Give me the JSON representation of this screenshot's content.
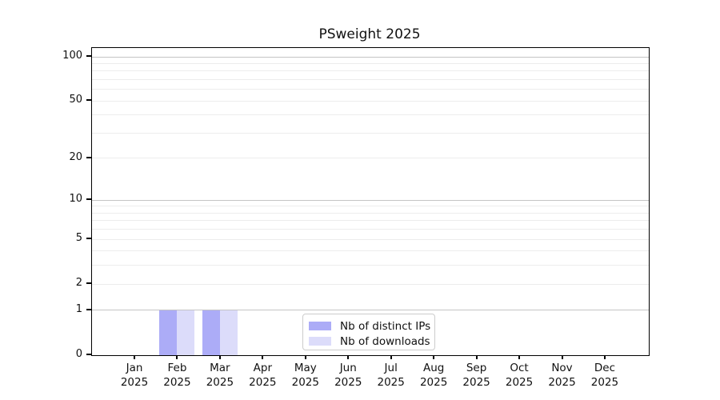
{
  "chart_data": {
    "type": "bar",
    "title": "PSweight 2025",
    "categories": [
      "Jan 2025",
      "Feb 2025",
      "Mar 2025",
      "Apr 2025",
      "May 2025",
      "Jun 2025",
      "Jul 2025",
      "Aug 2025",
      "Sep 2025",
      "Oct 2025",
      "Nov 2025",
      "Dec 2025"
    ],
    "x_tick_months": [
      "Jan",
      "Feb",
      "Mar",
      "Apr",
      "May",
      "Jun",
      "Jul",
      "Aug",
      "Sep",
      "Oct",
      "Nov",
      "Dec"
    ],
    "x_tick_year": "2025",
    "series": [
      {
        "name": "Nb of distinct IPs",
        "color": "#acacf7",
        "values": [
          0,
          1,
          1,
          0,
          0,
          0,
          0,
          0,
          0,
          0,
          0,
          0
        ]
      },
      {
        "name": "Nb of downloads",
        "color": "#dcdcfa",
        "values": [
          0,
          1,
          1,
          0,
          0,
          0,
          0,
          0,
          0,
          0,
          0,
          0
        ]
      }
    ],
    "y_scale": "log10(1+v)",
    "ylim": [
      0,
      115
    ],
    "y_tick_values": [
      100,
      50,
      20,
      10,
      5,
      2,
      1,
      0
    ],
    "y_tick_labels": [
      "100",
      "50",
      "20",
      "10",
      "5",
      "2",
      "1",
      "0"
    ],
    "y_major_gridlines": [
      1,
      10,
      100
    ],
    "y_minor_gridlines": [
      2,
      3,
      4,
      5,
      6,
      7,
      8,
      9,
      20,
      30,
      40,
      50,
      60,
      70,
      80,
      90
    ],
    "grid": "horizontal",
    "legend_position": "inside-bottom-center"
  },
  "legend": {
    "items": [
      {
        "label": "Nb of distinct IPs",
        "color": "#acacf7"
      },
      {
        "label": "Nb of downloads",
        "color": "#dcdcfa"
      }
    ]
  },
  "colors": {
    "distinct_ips": "#acacf7",
    "downloads": "#dcdcfa",
    "grid_major": "#c4c4c4",
    "grid_minor": "#ececec",
    "spine": "#000000",
    "background": "#ffffff"
  }
}
